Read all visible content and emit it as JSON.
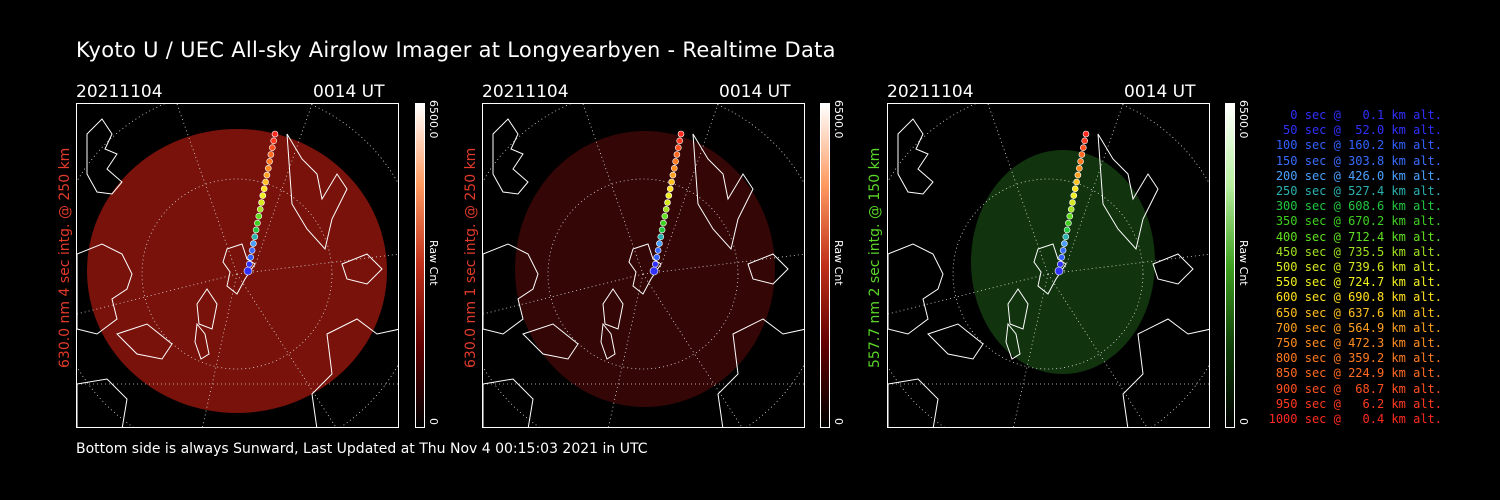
{
  "title": "Kyoto U / UEC All-sky Airglow Imager at Longyearbyen - Realtime Data",
  "footer": "Bottom side is always Sunward, Last Updated at Thu Nov  4 00:15:03 2021 in UTC",
  "panels": [
    {
      "date": "20211104",
      "time": "0014 UT",
      "label": "630.0 nm 4 sec intg. @ 250 km",
      "label_color": "#e03a2a",
      "fill": "#8e150d",
      "opacity": 0.85,
      "colorbar_max": "6500.0",
      "colorbar_min": "0",
      "colorbar_unit": "Raw Cnt",
      "colorbar_colors": [
        "#ffffff",
        "#ff9a60",
        "#c0301a",
        "#600000",
        "#000000"
      ]
    },
    {
      "date": "20211104",
      "time": "0014 UT",
      "label": "630.0 nm 1 sec intg. @ 250 km",
      "label_color": "#e03a2a",
      "fill": "#3a0707",
      "opacity": 0.9,
      "colorbar_max": "6500.0",
      "colorbar_min": "0",
      "colorbar_unit": "Raw Cnt",
      "colorbar_colors": [
        "#ffffff",
        "#ff9a60",
        "#c0301a",
        "#600000",
        "#000000"
      ]
    },
    {
      "date": "20211104",
      "time": "0014 UT",
      "label": "557.7 nm 2 sec intg. @ 150 km",
      "label_color": "#5ad62a",
      "fill": "#133a10",
      "opacity": 0.9,
      "colorbar_max": "6500.0",
      "colorbar_min": "0",
      "colorbar_unit": "Raw Cnt",
      "colorbar_colors": [
        "#ffffff",
        "#b8f0a0",
        "#3fa020",
        "#104008",
        "#000000"
      ]
    }
  ],
  "legend": [
    {
      "text": "0 sec @   0.1 km alt.",
      "color": "#3030ff"
    },
    {
      "text": "50 sec @  52.0 km alt.",
      "color": "#3030ff"
    },
    {
      "text": "100 sec @ 160.2 km alt.",
      "color": "#3060ff"
    },
    {
      "text": "150 sec @ 303.8 km alt.",
      "color": "#3a6cff"
    },
    {
      "text": "200 sec @ 426.0 km alt.",
      "color": "#4aa0ff"
    },
    {
      "text": "250 sec @ 527.4 km alt.",
      "color": "#2ab0b0"
    },
    {
      "text": "300 sec @ 608.6 km alt.",
      "color": "#20c840"
    },
    {
      "text": "350 sec @ 670.2 km alt.",
      "color": "#40d020"
    },
    {
      "text": "400 sec @ 712.4 km alt.",
      "color": "#60e020"
    },
    {
      "text": "450 sec @ 735.5 km alt.",
      "color": "#a0e020"
    },
    {
      "text": "500 sec @ 739.6 km alt.",
      "color": "#d8e820"
    },
    {
      "text": "550 sec @ 724.7 km alt.",
      "color": "#f0f020"
    },
    {
      "text": "600 sec @ 690.8 km alt.",
      "color": "#ffe020"
    },
    {
      "text": "650 sec @ 637.6 km alt.",
      "color": "#ffc020"
    },
    {
      "text": "700 sec @ 564.9 km alt.",
      "color": "#ffa020"
    },
    {
      "text": "750 sec @ 472.3 km alt.",
      "color": "#ff8c20"
    },
    {
      "text": "800 sec @ 359.2 km alt.",
      "color": "#ff7a20"
    },
    {
      "text": "850 sec @ 224.9 km alt.",
      "color": "#ff6a20"
    },
    {
      "text": "900 sec @  68.7 km alt.",
      "color": "#ff5020"
    },
    {
      "text": "950 sec @   6.2 km alt.",
      "color": "#ff3a20"
    },
    {
      "text": "1000 sec @   0.4 km alt.",
      "color": "#ff2a20"
    }
  ]
}
